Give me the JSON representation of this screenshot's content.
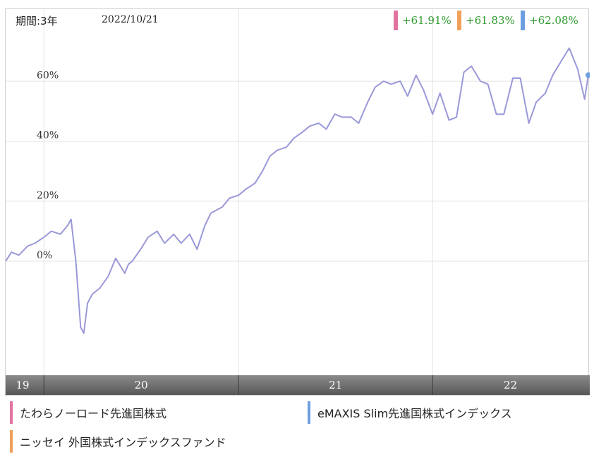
{
  "header": {
    "period_label": "期間:3年",
    "date": "2022/10/21"
  },
  "returns": [
    {
      "value": "+61.91%",
      "color": "#e2739f"
    },
    {
      "value": "+61.83%",
      "color": "#f0a05a"
    },
    {
      "value": "+62.08%",
      "color": "#6d9ee0"
    }
  ],
  "legend": [
    {
      "label": "たわらノーロード先進国株式",
      "color": "#e2739f"
    },
    {
      "label": "eMAXIS Slim先進国株式インデックス",
      "color": "#6d9ee0"
    },
    {
      "label": "ニッセイ 外国株式インデックスファンド",
      "color": "#f0a05a"
    }
  ],
  "colors": {
    "line": "#9a98d8",
    "positive_text": "#2e9a2e",
    "axis_band": "#6a6a6a"
  },
  "chart_data": {
    "type": "line",
    "title": "",
    "xlabel": "",
    "ylabel": "",
    "y_unit": "%",
    "ylim": [
      -38,
      84
    ],
    "y_ticks": [
      0,
      20,
      40,
      60
    ],
    "y_tick_labels": [
      "0%",
      "20%",
      "40%",
      "60%"
    ],
    "x_tick_labels": [
      "19",
      "20",
      "21",
      "22"
    ],
    "x_range": [
      "2019-10-21",
      "2022-10-21"
    ],
    "grid": true,
    "x": [
      "2019-10-21",
      "2019-11-01",
      "2019-11-15",
      "2019-12-01",
      "2019-12-15",
      "2020-01-01",
      "2020-01-15",
      "2020-02-01",
      "2020-02-15",
      "2020-02-21",
      "2020-03-01",
      "2020-03-10",
      "2020-03-16",
      "2020-03-23",
      "2020-04-01",
      "2020-04-15",
      "2020-05-01",
      "2020-05-15",
      "2020-06-01",
      "2020-06-08",
      "2020-06-15",
      "2020-07-01",
      "2020-07-15",
      "2020-08-01",
      "2020-08-15",
      "2020-09-01",
      "2020-09-15",
      "2020-10-01",
      "2020-10-15",
      "2020-10-30",
      "2020-11-10",
      "2020-12-01",
      "2020-12-15",
      "2021-01-01",
      "2021-01-15",
      "2021-02-01",
      "2021-02-15",
      "2021-03-01",
      "2021-03-15",
      "2021-04-01",
      "2021-04-15",
      "2021-05-01",
      "2021-05-15",
      "2021-06-01",
      "2021-06-15",
      "2021-07-01",
      "2021-07-15",
      "2021-08-01",
      "2021-08-15",
      "2021-09-01",
      "2021-09-15",
      "2021-10-01",
      "2021-10-15",
      "2021-11-01",
      "2021-11-15",
      "2021-12-01",
      "2021-12-15",
      "2022-01-01",
      "2022-01-15",
      "2022-02-01",
      "2022-02-15",
      "2022-03-01",
      "2022-03-15",
      "2022-04-01",
      "2022-04-15",
      "2022-05-01",
      "2022-05-15",
      "2022-06-01",
      "2022-06-15",
      "2022-07-01",
      "2022-07-15",
      "2022-08-01",
      "2022-08-15",
      "2022-09-01",
      "2022-09-15",
      "2022-10-01",
      "2022-10-14",
      "2022-10-21"
    ],
    "series": [
      {
        "values": [
          0,
          3,
          2,
          5,
          6,
          8,
          10,
          9,
          12,
          14,
          0,
          -22,
          -24,
          -14,
          -11,
          -9,
          -5,
          1,
          -4,
          -1,
          0,
          4,
          8,
          10,
          6,
          9,
          6,
          9,
          4,
          12,
          16,
          18,
          21,
          22,
          24,
          26,
          30,
          35,
          37,
          38,
          41,
          43,
          45,
          46,
          44,
          49,
          48,
          48,
          46,
          53,
          58,
          60,
          59,
          60,
          55,
          62,
          57,
          49,
          56,
          47,
          48,
          63,
          65,
          60,
          59,
          49,
          49,
          61,
          61,
          46,
          53,
          56,
          62,
          67,
          71,
          64,
          54,
          62
        ]
      }
    ]
  }
}
